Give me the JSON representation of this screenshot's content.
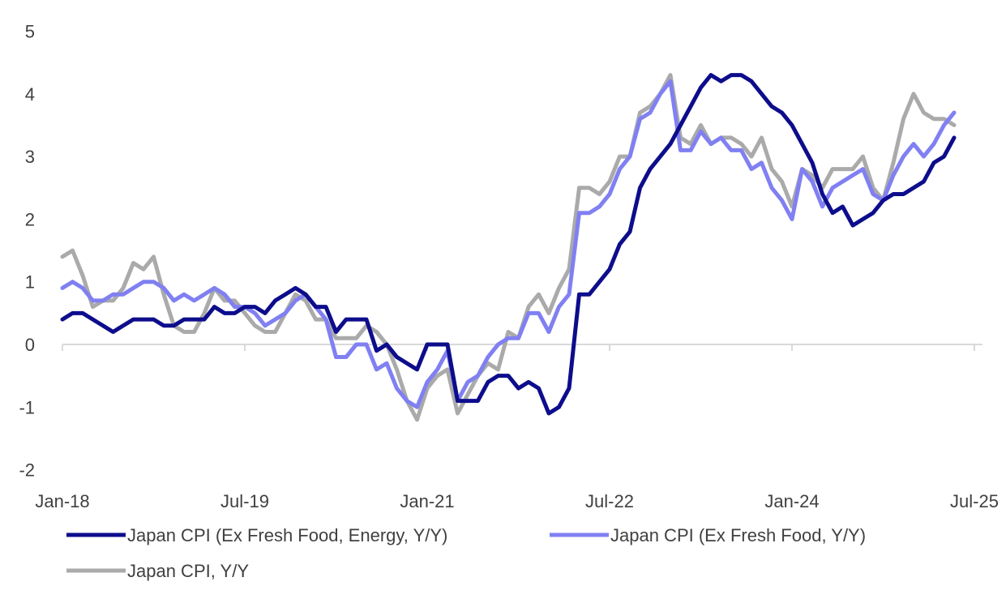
{
  "chart_data": {
    "type": "line",
    "title": "",
    "xlabel": "",
    "ylabel": "",
    "x_start": "Jan-18",
    "x_end": "May-25",
    "frequency": "monthly",
    "x_ticks": [
      "Jan-18",
      "Jul-19",
      "Jan-21",
      "Jul-22",
      "Jan-24",
      "Jul-25"
    ],
    "y_ticks": [
      5,
      4,
      3,
      2,
      1,
      0,
      -1,
      -2
    ],
    "ylim": [
      -2,
      5
    ],
    "grid": false,
    "legend_placement": "bottom",
    "series": [
      {
        "name": "Japan CPI (Ex Fresh Food, Energy, Y/Y)",
        "color": "#0d0d8c",
        "values": [
          0.4,
          0.5,
          0.5,
          0.4,
          0.3,
          0.2,
          0.3,
          0.4,
          0.4,
          0.4,
          0.3,
          0.3,
          0.4,
          0.4,
          0.4,
          0.6,
          0.5,
          0.5,
          0.6,
          0.6,
          0.5,
          0.7,
          0.8,
          0.9,
          0.8,
          0.6,
          0.6,
          0.2,
          0.4,
          0.4,
          0.4,
          -0.1,
          0.0,
          -0.2,
          -0.3,
          -0.4,
          0.0,
          0.0,
          0.0,
          -0.9,
          -0.9,
          -0.9,
          -0.6,
          -0.5,
          -0.5,
          -0.7,
          -0.6,
          -0.7,
          -1.1,
          -1.0,
          -0.7,
          0.8,
          0.8,
          1.0,
          1.2,
          1.6,
          1.8,
          2.5,
          2.8,
          3.0,
          3.2,
          3.5,
          3.8,
          4.1,
          4.3,
          4.2,
          4.3,
          4.3,
          4.2,
          4.0,
          3.8,
          3.7,
          3.5,
          3.2,
          2.9,
          2.4,
          2.1,
          2.2,
          1.9,
          2.0,
          2.1,
          2.3,
          2.4,
          2.4,
          2.5,
          2.6,
          2.9,
          3.0,
          3.3
        ]
      },
      {
        "name": "Japan CPI (Ex Fresh Food, Y/Y)",
        "color": "#8080f2",
        "values": [
          0.9,
          1.0,
          0.9,
          0.7,
          0.7,
          0.8,
          0.8,
          0.9,
          1.0,
          1.0,
          0.9,
          0.7,
          0.8,
          0.7,
          0.8,
          0.9,
          0.8,
          0.6,
          0.6,
          0.5,
          0.3,
          0.4,
          0.5,
          0.7,
          0.8,
          0.6,
          0.4,
          -0.2,
          -0.2,
          0.0,
          0.0,
          -0.4,
          -0.3,
          -0.7,
          -0.9,
          -1.0,
          -0.6,
          -0.4,
          -0.1,
          -0.9,
          -0.6,
          -0.5,
          -0.2,
          0.0,
          0.1,
          0.1,
          0.5,
          0.5,
          0.2,
          0.6,
          0.8,
          2.1,
          2.1,
          2.2,
          2.4,
          2.8,
          3.0,
          3.6,
          3.7,
          4.0,
          4.2,
          3.1,
          3.1,
          3.4,
          3.2,
          3.3,
          3.1,
          3.1,
          2.8,
          2.9,
          2.5,
          2.3,
          2.0,
          2.8,
          2.6,
          2.2,
          2.5,
          2.6,
          2.7,
          2.8,
          2.4,
          2.3,
          2.7,
          3.0,
          3.2,
          3.0,
          3.2,
          3.5,
          3.7
        ]
      },
      {
        "name": "Japan CPI, Y/Y",
        "color": "#aaaaaa",
        "values": [
          1.4,
          1.5,
          1.1,
          0.6,
          0.7,
          0.7,
          0.9,
          1.3,
          1.2,
          1.4,
          0.8,
          0.3,
          0.2,
          0.2,
          0.5,
          0.9,
          0.7,
          0.7,
          0.5,
          0.3,
          0.2,
          0.2,
          0.5,
          0.8,
          0.7,
          0.4,
          0.4,
          0.1,
          0.1,
          0.1,
          0.3,
          0.2,
          0.0,
          -0.4,
          -0.9,
          -1.2,
          -0.7,
          -0.5,
          -0.4,
          -1.1,
          -0.8,
          -0.5,
          -0.3,
          -0.4,
          0.2,
          0.1,
          0.6,
          0.8,
          0.5,
          0.9,
          1.2,
          2.5,
          2.5,
          2.4,
          2.6,
          3.0,
          3.0,
          3.7,
          3.8,
          4.0,
          4.3,
          3.3,
          3.2,
          3.5,
          3.2,
          3.3,
          3.3,
          3.2,
          3.0,
          3.3,
          2.8,
          2.6,
          2.2,
          2.8,
          2.7,
          2.5,
          2.8,
          2.8,
          2.8,
          3.0,
          2.5,
          2.3,
          2.9,
          3.6,
          4.0,
          3.7,
          3.6,
          3.6,
          3.5
        ]
      }
    ]
  }
}
